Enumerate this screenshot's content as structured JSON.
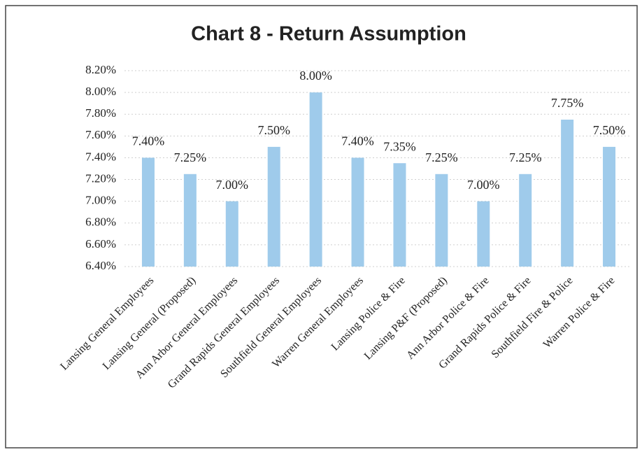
{
  "chart_data": {
    "type": "bar",
    "title": "Chart 8 - Return Assumption",
    "categories": [
      "Lansing General Employees",
      "Lansing General (Proposed)",
      "Ann Arbor General Employees",
      "Grand Rapids General Employees",
      "Southfield General Employees",
      "Warren General Employees",
      "Lansing Police & Fire",
      "Lansing P&F (Proposed)",
      "Ann Arbor Police & Fire",
      "Grand Rapids Police & Fire",
      "Southfield Fire & Police",
      "Warren Police & Fire"
    ],
    "values": [
      7.4,
      7.25,
      7.0,
      7.5,
      8.0,
      7.4,
      7.35,
      7.25,
      7.0,
      7.25,
      7.75,
      7.5
    ],
    "value_labels": [
      "7.40%",
      "7.25%",
      "7.00%",
      "7.50%",
      "8.00%",
      "7.40%",
      "7.35%",
      "7.25%",
      "7.00%",
      "7.25%",
      "7.75%",
      "7.50%"
    ],
    "color": "#9fcbeb",
    "ylim": [
      6.4,
      8.2
    ],
    "yticks": [
      {
        "value": 6.4,
        "label": "6.40%"
      },
      {
        "value": 6.6,
        "label": "6.60%"
      },
      {
        "value": 6.8,
        "label": "6.80%"
      },
      {
        "value": 7.0,
        "label": "7.00%"
      },
      {
        "value": 7.2,
        "label": "7.20%"
      },
      {
        "value": 7.4,
        "label": "7.40%"
      },
      {
        "value": 7.6,
        "label": "7.60%"
      },
      {
        "value": 7.8,
        "label": "7.80%"
      },
      {
        "value": 8.0,
        "label": "8.00%"
      },
      {
        "value": 8.2,
        "label": "8.20%"
      }
    ],
    "grid": true
  }
}
